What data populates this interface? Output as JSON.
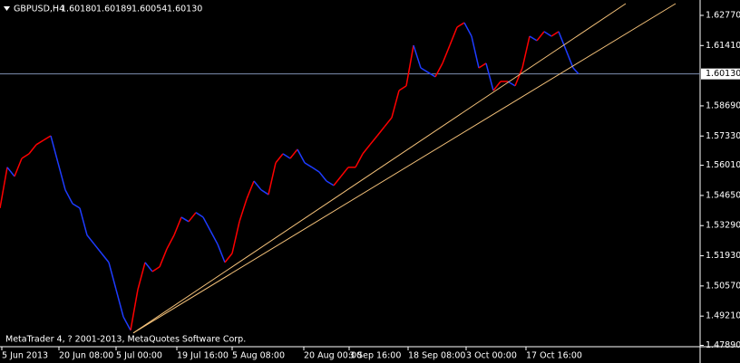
{
  "chart_data": {
    "type": "price-line",
    "header": {
      "symbol": "GBPUSD,H4",
      "open": "1.60180",
      "high": "1.60189",
      "low": "1.60054",
      "close": "1.60130"
    },
    "footer": "MetaTrader 4, ? 2001-2013, MetaQuotes Software Corp.",
    "x": [
      0,
      8,
      16,
      24,
      32,
      40,
      48,
      56,
      64,
      72,
      80,
      88,
      96,
      104,
      112,
      120,
      128,
      136,
      144,
      152,
      160,
      168,
      176,
      184,
      192,
      200,
      208,
      216,
      224,
      232,
      240,
      248,
      256,
      264,
      272,
      280,
      288,
      296,
      304,
      312,
      320,
      328,
      336,
      344,
      352,
      360,
      368,
      376,
      384,
      392,
      400,
      408,
      416,
      424,
      432,
      440,
      448,
      456,
      464,
      472,
      480,
      488,
      496,
      504,
      512,
      520,
      528,
      536,
      544,
      552,
      560,
      568,
      576,
      584,
      592,
      600,
      608,
      616,
      624,
      632,
      638
    ],
    "values": [
      1.5408,
      1.5592,
      1.5551,
      1.5632,
      1.5653,
      1.5694,
      1.5714,
      1.5734,
      1.5612,
      1.549,
      1.5428,
      1.5408,
      1.5286,
      1.5245,
      1.5204,
      1.5163,
      1.5041,
      1.4918,
      1.4857,
      1.5041,
      1.5163,
      1.5122,
      1.5143,
      1.5224,
      1.5286,
      1.5367,
      1.5347,
      1.5388,
      1.5367,
      1.5306,
      1.5245,
      1.5163,
      1.5204,
      1.5347,
      1.5449,
      1.553,
      1.549,
      1.5469,
      1.5612,
      1.5653,
      1.5632,
      1.5673,
      1.5612,
      1.5592,
      1.5571,
      1.553,
      1.551,
      1.5551,
      1.5592,
      1.5592,
      1.5653,
      1.5694,
      1.5734,
      1.5775,
      1.5816,
      1.5938,
      1.5959,
      1.6142,
      1.604,
      1.602,
      1.6,
      1.6061,
      1.6142,
      1.6224,
      1.6244,
      1.6183,
      1.604,
      1.6061,
      1.5938,
      1.5979,
      1.5979,
      1.5959,
      1.604,
      1.6183,
      1.6163,
      1.6204,
      1.6183,
      1.6204,
      1.6122,
      1.604,
      1.6013
    ],
    "up_color": "#ff0000",
    "down_color": "#1e3cff",
    "trendlines": [
      {
        "color": "#f5c27a",
        "x": [
          147,
          690
        ],
        "values": [
          1.4845,
          1.633
        ]
      },
      {
        "color": "#f5c27a",
        "x": [
          147,
          745
        ],
        "values": [
          1.4845,
          1.633
        ]
      }
    ],
    "current_price": {
      "value": 1.6013,
      "label": "1.60130"
    },
    "xlim": [
      0,
      772
    ],
    "ylim": [
      1.4783,
      1.633
    ],
    "xticks": [
      {
        "value": 2,
        "label": "5 Jun 2013"
      },
      {
        "value": 65,
        "label": "20 Jun 08:00"
      },
      {
        "value": 128,
        "label": "5 Jul 00:00"
      },
      {
        "value": 195,
        "label": "19 Jul 16:00"
      },
      {
        "value": 256,
        "label": "5 Aug 08:00"
      },
      {
        "value": 335,
        "label": "20 Aug 00:00"
      },
      {
        "value": 385,
        "label": "3 Sep 16:00"
      },
      {
        "value": 450,
        "label": "18 Sep 08:00"
      },
      {
        "value": 514,
        "label": "3 Oct 00:00"
      },
      {
        "value": 580,
        "label": "17 Oct 16:00"
      }
    ],
    "yticks": [
      {
        "value": 1.6277,
        "label": "1.62770"
      },
      {
        "value": 1.6141,
        "label": "1.61410"
      },
      {
        "value": 1.5869,
        "label": "1.58690"
      },
      {
        "value": 1.5733,
        "label": "1.57330"
      },
      {
        "value": 1.5601,
        "label": "1.56010"
      },
      {
        "value": 1.5465,
        "label": "1.54650"
      },
      {
        "value": 1.5329,
        "label": "1.53290"
      },
      {
        "value": 1.5193,
        "label": "1.51930"
      },
      {
        "value": 1.5057,
        "label": "1.50570"
      },
      {
        "value": 1.4921,
        "label": "1.49210"
      },
      {
        "value": 1.4789,
        "label": "1.47890"
      }
    ],
    "grid": false
  }
}
